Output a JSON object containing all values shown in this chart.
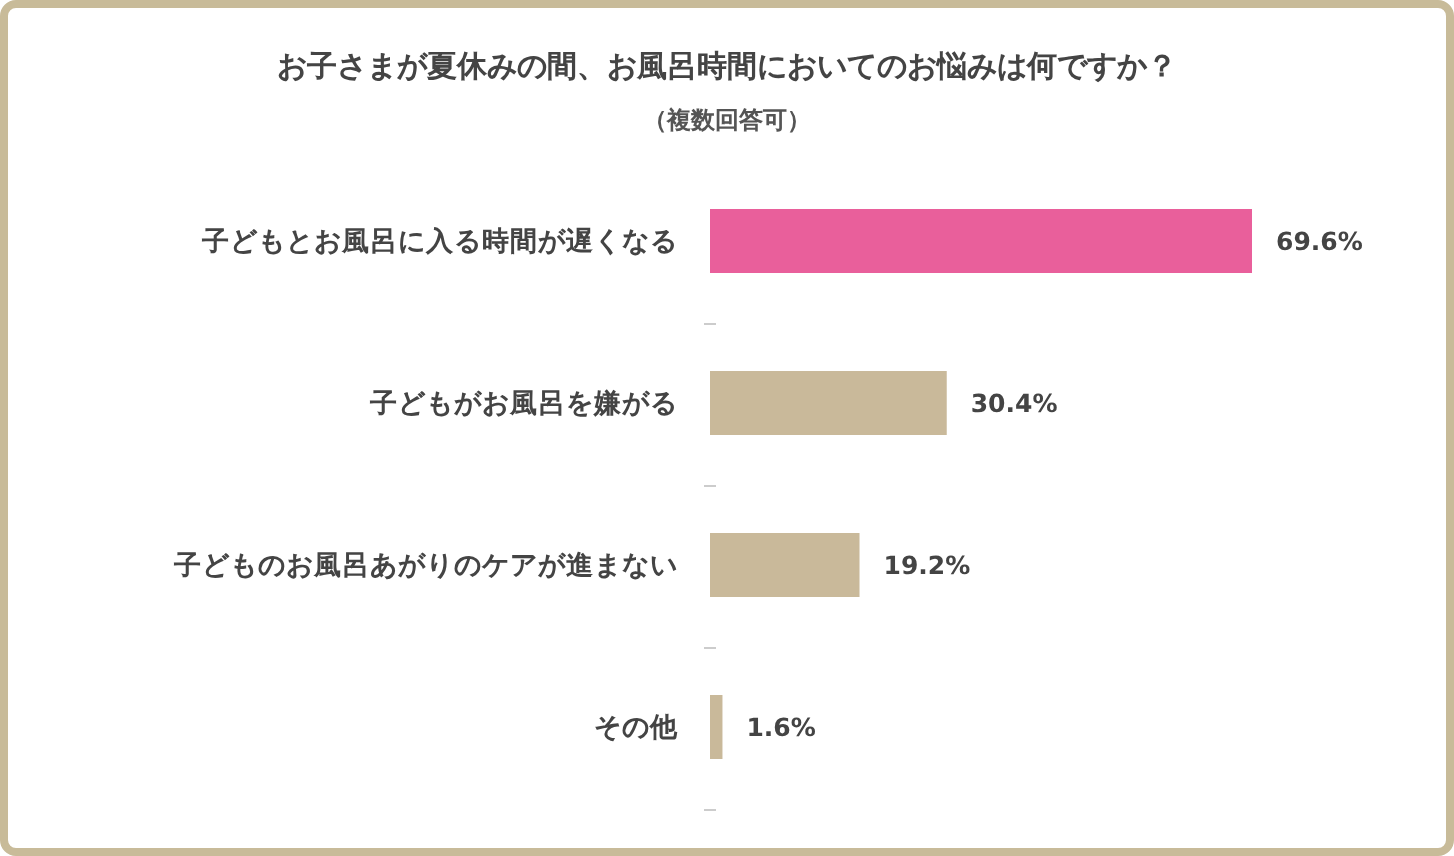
{
  "chart_data": {
    "type": "bar",
    "orientation": "horizontal",
    "title": "お子さまが夏休みの間、お風呂時間においてのお悩みは何ですか？",
    "subtitle": "（複数回答可）",
    "categories": [
      "子どもとお風呂に入る時間が遅くなる",
      "子どもがお風呂を嫌がる",
      "子どものお風呂あがりのケアが進まない",
      "その他"
    ],
    "values": [
      69.6,
      30.4,
      19.2,
      1.6
    ],
    "colors": [
      "#e95f9b",
      "#c9b99a",
      "#c9b99a",
      "#c9b99a"
    ],
    "value_labels": [
      "69.6%",
      "30.4%",
      "19.2%",
      "1.6%"
    ]
  }
}
